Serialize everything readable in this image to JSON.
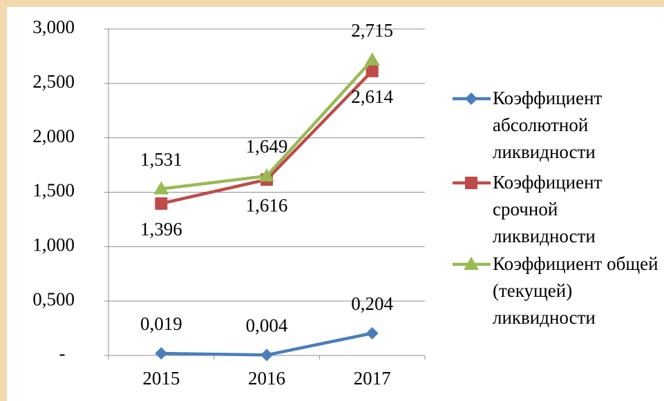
{
  "chart_data": {
    "type": "line",
    "categories": [
      "2015",
      "2016",
      "2017"
    ],
    "series": [
      {
        "name": "Коэффициент абсолютной ликвидности",
        "color": "#4a7ebb",
        "marker": "diamond",
        "values": [
          0.019,
          0.004,
          0.204
        ],
        "value_labels": [
          "0,019",
          "0,004",
          "0,204"
        ]
      },
      {
        "name": "Коэффициент срочной ликвидности",
        "color": "#be4b48",
        "marker": "square",
        "values": [
          1.396,
          1.616,
          2.614
        ],
        "value_labels": [
          "1,396",
          "1,616",
          "2,614"
        ]
      },
      {
        "name": "Коэффициент общей (текущей) ликвидности",
        "color": "#98b954",
        "marker": "triangle",
        "values": [
          1.531,
          1.649,
          2.715
        ],
        "value_labels": [
          "1,531",
          "1,649",
          "2,715"
        ]
      }
    ],
    "ylim": [
      0,
      3
    ],
    "yticks": [
      {
        "value": 0,
        "label": "-"
      },
      {
        "value": 0.5,
        "label": "0,500"
      },
      {
        "value": 1,
        "label": "1,000"
      },
      {
        "value": 1.5,
        "label": "1,500"
      },
      {
        "value": 2,
        "label": "2,000"
      },
      {
        "value": 2.5,
        "label": "2,500"
      },
      {
        "value": 3,
        "label": "3,000"
      }
    ],
    "grid": true,
    "legend": "right"
  }
}
